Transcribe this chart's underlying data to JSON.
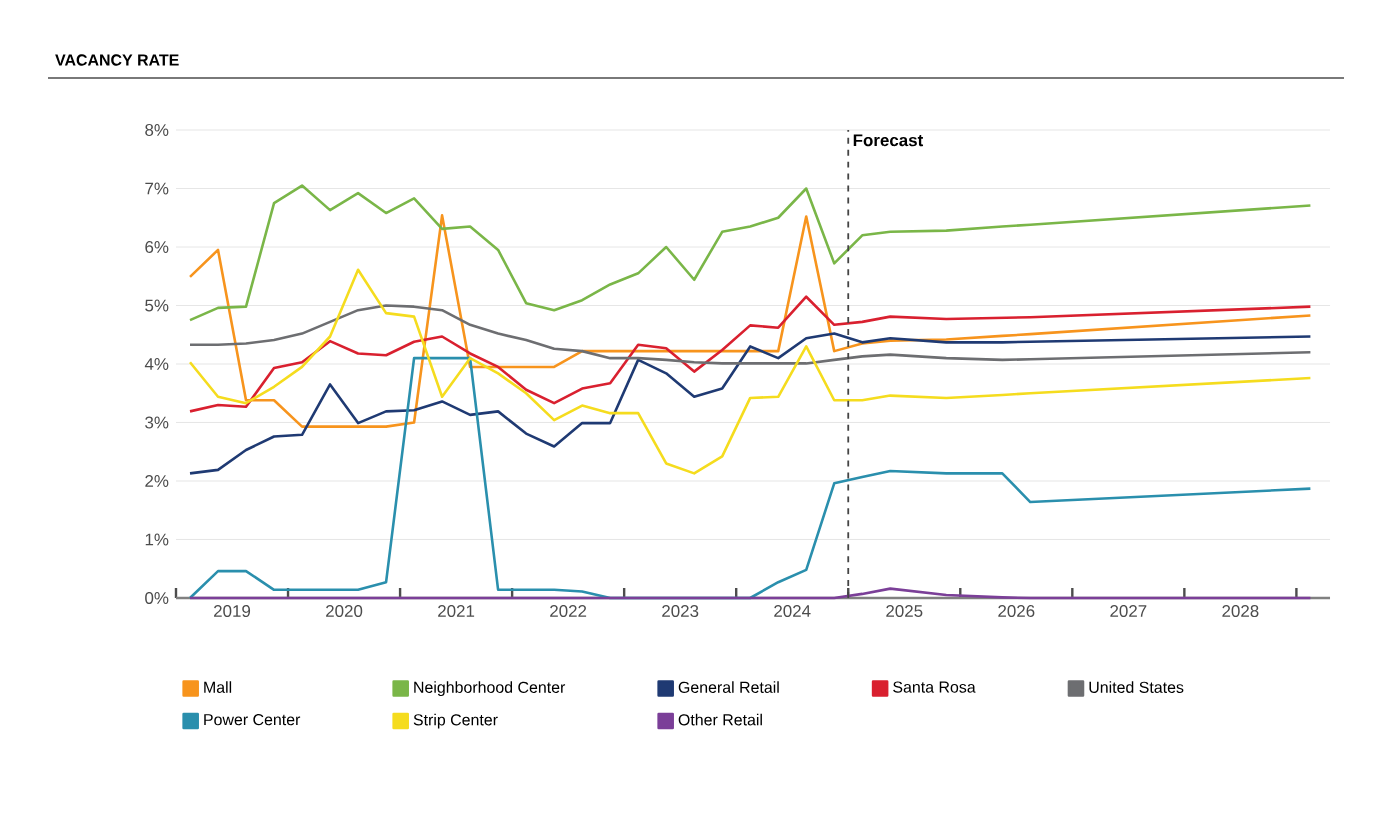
{
  "chart_data": {
    "type": "line",
    "title": "VACANCY RATE",
    "x": [
      2019.125,
      2019.375,
      2019.625,
      2019.875,
      2020.125,
      2020.375,
      2020.625,
      2020.875,
      2021.125,
      2021.375,
      2021.625,
      2021.875,
      2022.125,
      2022.375,
      2022.625,
      2022.875,
      2023.125,
      2023.375,
      2023.625,
      2023.875,
      2024.125,
      2024.375,
      2024.625,
      2024.875,
      2025.125,
      2025.375,
      2025.875,
      2026.375,
      2026.625,
      2029.125
    ],
    "series": [
      {
        "name": "Mall",
        "color": "#f7941d",
        "values": [
          5.49,
          5.95,
          3.38,
          3.38,
          2.93,
          2.93,
          2.93,
          2.93,
          3.0,
          6.54,
          3.95,
          3.95,
          3.95,
          3.95,
          4.22,
          4.22,
          4.22,
          4.22,
          4.22,
          4.22,
          4.22,
          4.22,
          6.52,
          4.22,
          4.35,
          4.4,
          4.42,
          4.48,
          4.51,
          4.83
        ]
      },
      {
        "name": "Neighborhood Center",
        "color": "#7ab648",
        "values": [
          4.75,
          4.96,
          4.98,
          6.75,
          7.05,
          6.63,
          6.92,
          6.58,
          6.83,
          6.31,
          6.35,
          5.95,
          5.04,
          4.92,
          5.09,
          5.36,
          5.55,
          6.0,
          5.44,
          6.26,
          6.35,
          6.5,
          7.0,
          5.72,
          6.2,
          6.26,
          6.28,
          6.35,
          6.38,
          6.71
        ]
      },
      {
        "name": "General Retail",
        "color": "#1f3a73",
        "values": [
          2.13,
          2.19,
          2.53,
          2.76,
          2.79,
          3.65,
          2.99,
          3.19,
          3.21,
          3.36,
          3.13,
          3.19,
          2.81,
          2.59,
          2.99,
          2.99,
          4.07,
          3.84,
          3.44,
          3.58,
          4.3,
          4.1,
          4.44,
          4.52,
          4.37,
          4.44,
          4.37,
          4.37,
          4.38,
          4.47
        ]
      },
      {
        "name": "Santa Rosa",
        "color": "#d9202f",
        "values": [
          3.19,
          3.3,
          3.27,
          3.93,
          4.03,
          4.39,
          4.18,
          4.15,
          4.38,
          4.47,
          4.18,
          3.95,
          3.56,
          3.33,
          3.58,
          3.67,
          4.33,
          4.27,
          3.87,
          4.24,
          4.66,
          4.62,
          5.15,
          4.67,
          4.72,
          4.81,
          4.77,
          4.79,
          4.8,
          4.98
        ]
      },
      {
        "name": "United States",
        "color": "#6d6e71",
        "values": [
          4.33,
          4.33,
          4.35,
          4.41,
          4.52,
          4.72,
          4.92,
          5.0,
          4.98,
          4.92,
          4.67,
          4.52,
          4.41,
          4.26,
          4.22,
          4.1,
          4.1,
          4.07,
          4.03,
          4.01,
          4.01,
          4.01,
          4.01,
          4.07,
          4.13,
          4.16,
          4.1,
          4.07,
          4.08,
          4.2
        ]
      },
      {
        "name": "Power Center",
        "color": "#2a8fad",
        "values": [
          0,
          0.46,
          0.46,
          0.14,
          0.14,
          0.14,
          0.14,
          0.27,
          4.1,
          4.1,
          4.1,
          0.14,
          0.14,
          0.14,
          0.11,
          0,
          0,
          0,
          0,
          0,
          0,
          0.27,
          0.48,
          1.96,
          2.07,
          2.17,
          2.13,
          2.13,
          1.64,
          1.87
        ]
      },
      {
        "name": "Strip Center",
        "color": "#f5dc1e",
        "values": [
          4.03,
          3.44,
          3.33,
          3.61,
          3.95,
          4.47,
          5.61,
          4.87,
          4.81,
          3.44,
          4.1,
          3.84,
          3.5,
          3.04,
          3.29,
          3.16,
          3.16,
          2.3,
          2.13,
          2.42,
          3.42,
          3.44,
          4.3,
          3.38,
          3.38,
          3.46,
          3.42,
          3.47,
          3.5,
          3.76
        ]
      },
      {
        "name": "Other Retail",
        "color": "#7b3f98",
        "values": [
          0,
          0,
          0,
          0,
          0,
          0,
          0,
          0,
          0,
          0,
          0,
          0,
          0,
          0,
          0,
          0,
          0,
          0,
          0,
          0,
          0,
          0,
          0,
          0,
          0.07,
          0.16,
          0.05,
          0.01,
          0,
          0
        ]
      }
    ],
    "xlim": [
      2019,
      2029.3
    ],
    "xticks": [
      {
        "value": 2019,
        "label": null
      },
      {
        "value": 2019.5,
        "label": "2019"
      },
      {
        "value": 2020,
        "label": null
      },
      {
        "value": 2020.5,
        "label": "2020"
      },
      {
        "value": 2021,
        "label": null
      },
      {
        "value": 2021.5,
        "label": "2021"
      },
      {
        "value": 2022,
        "label": null
      },
      {
        "value": 2022.5,
        "label": "2022"
      },
      {
        "value": 2023,
        "label": null
      },
      {
        "value": 2023.5,
        "label": "2023"
      },
      {
        "value": 2024,
        "label": null
      },
      {
        "value": 2024.5,
        "label": "2024"
      },
      {
        "value": 2025,
        "label": null
      },
      {
        "value": 2025.5,
        "label": "2025"
      },
      {
        "value": 2026,
        "label": null
      },
      {
        "value": 2026.5,
        "label": "2026"
      },
      {
        "value": 2027,
        "label": null
      },
      {
        "value": 2027.5,
        "label": "2027"
      },
      {
        "value": 2028,
        "label": null
      },
      {
        "value": 2028.5,
        "label": "2028"
      },
      {
        "value": 2029,
        "label": null
      }
    ],
    "ylim": [
      0,
      8
    ],
    "yticks": [
      {
        "value": 0,
        "label": "0%"
      },
      {
        "value": 1,
        "label": "1%"
      },
      {
        "value": 2,
        "label": "2%"
      },
      {
        "value": 3,
        "label": "3%"
      },
      {
        "value": 4,
        "label": "4%"
      },
      {
        "value": 5,
        "label": "5%"
      },
      {
        "value": 6,
        "label": "6%"
      },
      {
        "value": 7,
        "label": "7%"
      },
      {
        "value": 8,
        "label": "8%"
      }
    ],
    "ref_lines": [
      {
        "axis": "x",
        "value": 2025,
        "label": "Forecast",
        "color": "#444444",
        "line_style": "dashed"
      }
    ],
    "grid": "y",
    "legend": "bottom"
  }
}
